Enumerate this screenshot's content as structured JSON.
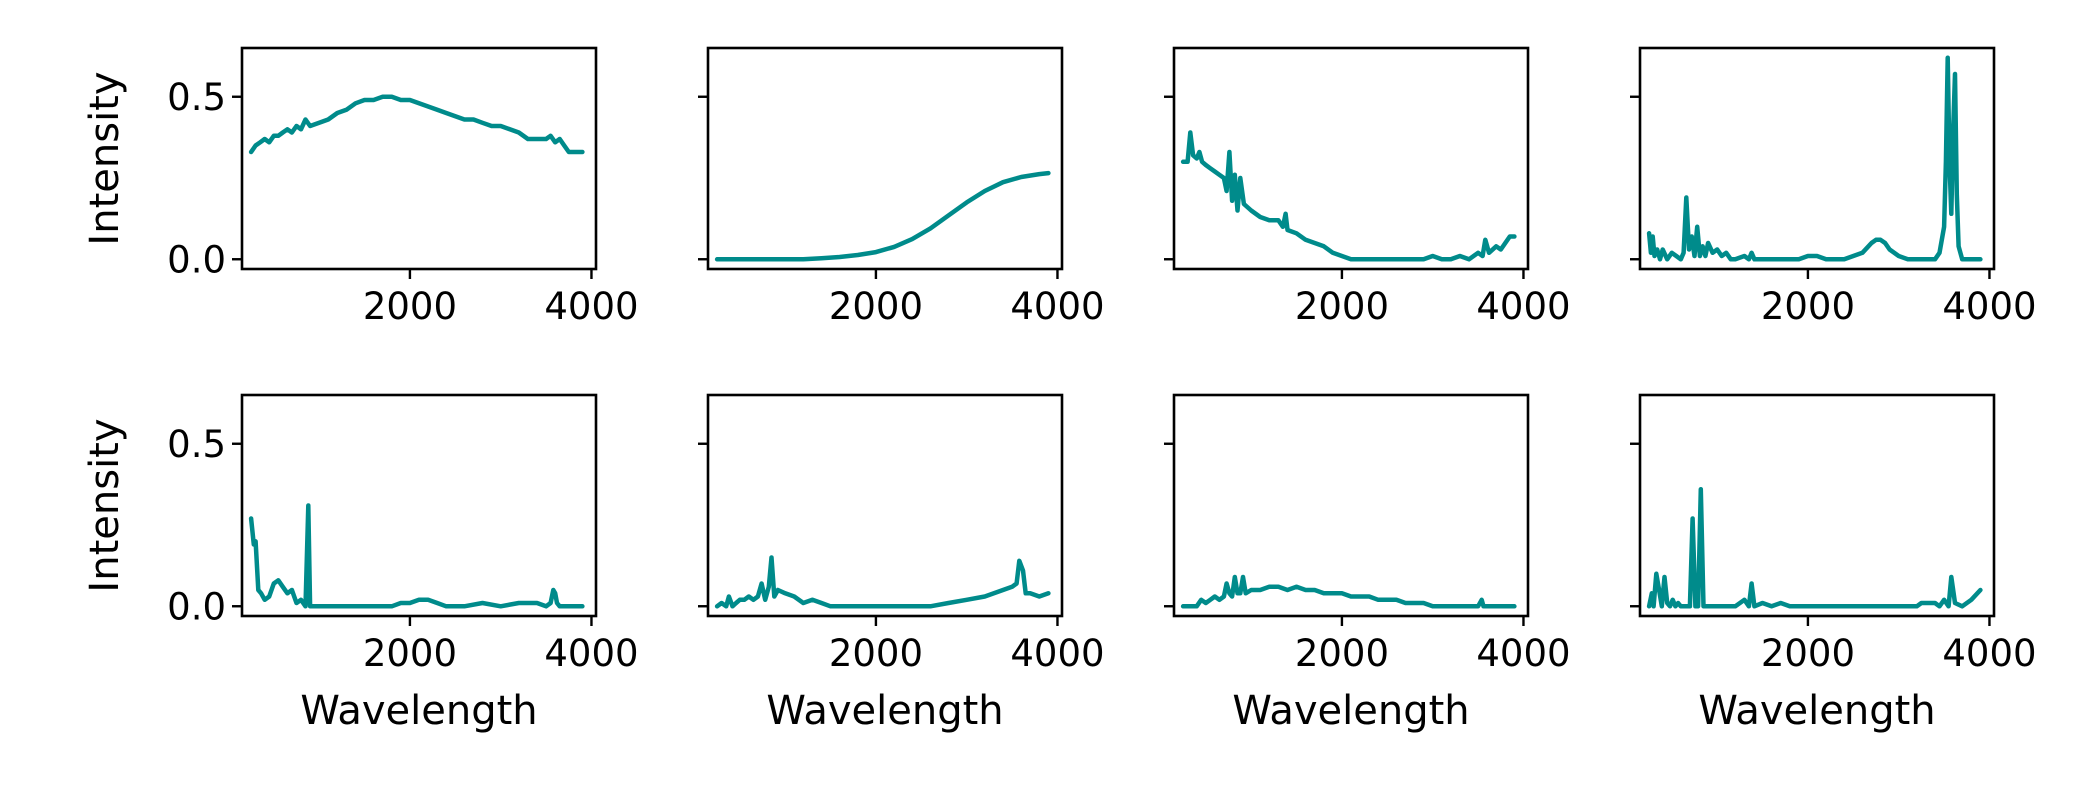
{
  "chart_data": [
    {
      "type": "line",
      "row": 0,
      "col": 0,
      "title": "",
      "xlabel": "",
      "ylabel": "Intensity",
      "xlim": [
        150,
        4050
      ],
      "ylim": [
        -0.03,
        0.65
      ],
      "xticks": [
        2000,
        4000
      ],
      "yticks": [
        0.0,
        0.5
      ],
      "xtick_labels": [
        "2000",
        "4000"
      ],
      "ytick_labels": [
        "0.0",
        "0.5"
      ],
      "series": [
        {
          "color": "#008b8b",
          "x": [
            250,
            300,
            350,
            400,
            450,
            500,
            550,
            600,
            650,
            700,
            750,
            800,
            850,
            900,
            1000,
            1100,
            1200,
            1300,
            1400,
            1500,
            1600,
            1700,
            1800,
            1900,
            2000,
            2100,
            2200,
            2300,
            2400,
            2500,
            2600,
            2700,
            2800,
            2900,
            3000,
            3100,
            3200,
            3300,
            3400,
            3500,
            3550,
            3600,
            3650,
            3700,
            3750,
            3800,
            3850,
            3900
          ],
          "y": [
            0.33,
            0.35,
            0.36,
            0.37,
            0.36,
            0.38,
            0.38,
            0.39,
            0.4,
            0.39,
            0.41,
            0.4,
            0.43,
            0.41,
            0.42,
            0.43,
            0.45,
            0.46,
            0.48,
            0.49,
            0.49,
            0.5,
            0.5,
            0.49,
            0.49,
            0.48,
            0.47,
            0.46,
            0.45,
            0.44,
            0.43,
            0.43,
            0.42,
            0.41,
            0.41,
            0.4,
            0.39,
            0.37,
            0.37,
            0.37,
            0.38,
            0.36,
            0.37,
            0.35,
            0.33,
            0.33,
            0.33,
            0.33
          ]
        }
      ]
    },
    {
      "type": "line",
      "row": 0,
      "col": 1,
      "title": "",
      "xlabel": "",
      "ylabel": "",
      "xlim": [
        150,
        4050
      ],
      "ylim": [
        -0.03,
        0.65
      ],
      "xticks": [
        2000,
        4000
      ],
      "yticks": [
        0.0,
        0.5
      ],
      "xtick_labels": [
        "2000",
        "4000"
      ],
      "ytick_labels": [],
      "series": [
        {
          "color": "#008b8b",
          "x": [
            250,
            400,
            600,
            800,
            1000,
            1200,
            1400,
            1600,
            1800,
            2000,
            2200,
            2400,
            2600,
            2800,
            3000,
            3200,
            3400,
            3600,
            3800,
            3900
          ],
          "y": [
            0.0,
            0.0,
            0.0,
            0.0,
            0.0,
            0.0,
            0.003,
            0.007,
            0.013,
            0.022,
            0.038,
            0.062,
            0.095,
            0.135,
            0.175,
            0.21,
            0.237,
            0.253,
            0.262,
            0.265
          ]
        }
      ]
    },
    {
      "type": "line",
      "row": 0,
      "col": 2,
      "title": "",
      "xlabel": "",
      "ylabel": "",
      "xlim": [
        150,
        4050
      ],
      "ylim": [
        -0.03,
        0.65
      ],
      "xticks": [
        2000,
        4000
      ],
      "yticks": [
        0.0,
        0.5
      ],
      "xtick_labels": [
        "2000",
        "4000"
      ],
      "ytick_labels": [],
      "series": [
        {
          "color": "#008b8b",
          "x": [
            250,
            300,
            330,
            360,
            400,
            430,
            460,
            500,
            550,
            600,
            650,
            700,
            730,
            760,
            790,
            820,
            850,
            880,
            920,
            1000,
            1100,
            1200,
            1300,
            1350,
            1380,
            1400,
            1500,
            1600,
            1700,
            1800,
            1900,
            2000,
            2100,
            2200,
            2300,
            2400,
            2600,
            2800,
            2900,
            3000,
            3100,
            3200,
            3300,
            3400,
            3500,
            3550,
            3580,
            3620,
            3700,
            3750,
            3800,
            3850,
            3900
          ],
          "y": [
            0.3,
            0.3,
            0.39,
            0.32,
            0.31,
            0.33,
            0.3,
            0.29,
            0.28,
            0.27,
            0.26,
            0.25,
            0.21,
            0.33,
            0.18,
            0.26,
            0.15,
            0.25,
            0.17,
            0.15,
            0.13,
            0.12,
            0.12,
            0.1,
            0.14,
            0.09,
            0.08,
            0.06,
            0.05,
            0.04,
            0.02,
            0.01,
            0.0,
            0.0,
            0.0,
            0.0,
            0.0,
            0.0,
            0.0,
            0.01,
            0.0,
            0.0,
            0.01,
            0.0,
            0.02,
            0.01,
            0.06,
            0.02,
            0.04,
            0.03,
            0.05,
            0.07,
            0.07
          ]
        }
      ]
    },
    {
      "type": "line",
      "row": 0,
      "col": 3,
      "title": "",
      "xlabel": "",
      "ylabel": "",
      "xlim": [
        150,
        4050
      ],
      "ylim": [
        -0.03,
        0.65
      ],
      "xticks": [
        2000,
        4000
      ],
      "yticks": [
        0.0,
        0.5
      ],
      "xtick_labels": [
        "2000",
        "4000"
      ],
      "ytick_labels": [],
      "series": [
        {
          "color": "#008b8b",
          "x": [
            250,
            270,
            290,
            310,
            340,
            370,
            400,
            450,
            500,
            550,
            600,
            630,
            660,
            690,
            720,
            750,
            780,
            810,
            840,
            870,
            900,
            950,
            1000,
            1050,
            1100,
            1150,
            1200,
            1300,
            1350,
            1380,
            1410,
            1500,
            1600,
            1700,
            1800,
            1900,
            2000,
            2100,
            2200,
            2300,
            2400,
            2500,
            2600,
            2700,
            2750,
            2800,
            2850,
            2900,
            3000,
            3100,
            3200,
            3300,
            3400,
            3450,
            3500,
            3520,
            3540,
            3560,
            3580,
            3600,
            3620,
            3640,
            3660,
            3700,
            3750,
            3800,
            3850,
            3900
          ],
          "y": [
            0.08,
            0.02,
            0.07,
            0.01,
            0.03,
            0.0,
            0.03,
            0.0,
            0.02,
            0.01,
            0.0,
            0.02,
            0.19,
            0.03,
            0.07,
            0.01,
            0.1,
            0.01,
            0.04,
            0.01,
            0.05,
            0.02,
            0.03,
            0.01,
            0.02,
            0.0,
            0.0,
            0.01,
            0.0,
            0.02,
            0.0,
            0.0,
            0.0,
            0.0,
            0.0,
            0.0,
            0.01,
            0.01,
            0.0,
            0.0,
            0.0,
            0.01,
            0.02,
            0.05,
            0.06,
            0.06,
            0.05,
            0.03,
            0.01,
            0.0,
            0.0,
            0.0,
            0.0,
            0.02,
            0.1,
            0.3,
            0.62,
            0.3,
            0.14,
            0.4,
            0.57,
            0.2,
            0.04,
            0.0,
            0.0,
            0.0,
            0.0,
            0.0
          ]
        }
      ]
    },
    {
      "type": "line",
      "row": 1,
      "col": 0,
      "title": "",
      "xlabel": "Wavelength",
      "ylabel": "Intensity",
      "xlim": [
        150,
        4050
      ],
      "ylim": [
        -0.03,
        0.65
      ],
      "xticks": [
        2000,
        4000
      ],
      "yticks": [
        0.0,
        0.5
      ],
      "xtick_labels": [
        "2000",
        "4000"
      ],
      "ytick_labels": [
        "0.0",
        "0.5"
      ],
      "series": [
        {
          "color": "#008b8b",
          "x": [
            250,
            280,
            300,
            330,
            360,
            400,
            450,
            500,
            550,
            600,
            650,
            700,
            750,
            800,
            850,
            880,
            900,
            920,
            950,
            1000,
            1100,
            1200,
            1400,
            1600,
            1800,
            1900,
            2000,
            2100,
            2200,
            2300,
            2400,
            2600,
            2800,
            3000,
            3200,
            3300,
            3400,
            3500,
            3550,
            3580,
            3600,
            3620,
            3650,
            3700,
            3800,
            3900
          ],
          "y": [
            0.27,
            0.19,
            0.2,
            0.05,
            0.04,
            0.02,
            0.03,
            0.07,
            0.08,
            0.06,
            0.04,
            0.05,
            0.01,
            0.02,
            0.0,
            0.31,
            0.0,
            0.0,
            0.0,
            0.0,
            0.0,
            0.0,
            0.0,
            0.0,
            0.0,
            0.01,
            0.01,
            0.02,
            0.02,
            0.01,
            0.0,
            0.0,
            0.01,
            0.0,
            0.01,
            0.01,
            0.01,
            0.0,
            0.01,
            0.05,
            0.04,
            0.01,
            0.0,
            0.0,
            0.0,
            0.0
          ]
        }
      ]
    },
    {
      "type": "line",
      "row": 1,
      "col": 1,
      "title": "",
      "xlabel": "Wavelength",
      "ylabel": "",
      "xlim": [
        150,
        4050
      ],
      "ylim": [
        -0.03,
        0.65
      ],
      "xticks": [
        2000,
        4000
      ],
      "yticks": [
        0.0,
        0.5
      ],
      "xtick_labels": [
        "2000",
        "4000"
      ],
      "ytick_labels": [],
      "series": [
        {
          "color": "#008b8b",
          "x": [
            250,
            300,
            350,
            380,
            420,
            460,
            500,
            550,
            600,
            650,
            700,
            740,
            780,
            820,
            850,
            880,
            920,
            1000,
            1100,
            1200,
            1300,
            1400,
            1500,
            1600,
            1800,
            2000,
            2200,
            2400,
            2600,
            2800,
            3000,
            3200,
            3400,
            3500,
            3550,
            3580,
            3620,
            3650,
            3700,
            3800,
            3900
          ],
          "y": [
            0.0,
            0.01,
            0.0,
            0.03,
            0.0,
            0.01,
            0.02,
            0.02,
            0.03,
            0.02,
            0.03,
            0.07,
            0.02,
            0.06,
            0.15,
            0.03,
            0.05,
            0.04,
            0.03,
            0.01,
            0.02,
            0.01,
            0.0,
            0.0,
            0.0,
            0.0,
            0.0,
            0.0,
            0.0,
            0.01,
            0.02,
            0.03,
            0.05,
            0.06,
            0.07,
            0.14,
            0.11,
            0.04,
            0.04,
            0.03,
            0.04
          ]
        }
      ]
    },
    {
      "type": "line",
      "row": 1,
      "col": 2,
      "title": "",
      "xlabel": "Wavelength",
      "ylabel": "",
      "xlim": [
        150,
        4050
      ],
      "ylim": [
        -0.03,
        0.65
      ],
      "xticks": [
        2000,
        4000
      ],
      "yticks": [
        0.0,
        0.5
      ],
      "xtick_labels": [
        "2000",
        "4000"
      ],
      "ytick_labels": [],
      "series": [
        {
          "color": "#008b8b",
          "x": [
            250,
            300,
            350,
            400,
            450,
            500,
            550,
            600,
            650,
            700,
            730,
            760,
            790,
            820,
            850,
            880,
            910,
            940,
            1000,
            1100,
            1200,
            1300,
            1400,
            1500,
            1600,
            1700,
            1800,
            1900,
            2000,
            2100,
            2200,
            2300,
            2400,
            2500,
            2600,
            2700,
            2800,
            2900,
            3000,
            3100,
            3200,
            3300,
            3400,
            3500,
            3540,
            3560,
            3600,
            3700,
            3800,
            3900
          ],
          "y": [
            0.0,
            0.0,
            0.0,
            0.0,
            0.02,
            0.01,
            0.02,
            0.03,
            0.02,
            0.03,
            0.07,
            0.04,
            0.03,
            0.09,
            0.04,
            0.04,
            0.09,
            0.04,
            0.05,
            0.05,
            0.06,
            0.06,
            0.05,
            0.06,
            0.05,
            0.05,
            0.04,
            0.04,
            0.04,
            0.03,
            0.03,
            0.03,
            0.02,
            0.02,
            0.02,
            0.01,
            0.01,
            0.01,
            0.0,
            0.0,
            0.0,
            0.0,
            0.0,
            0.0,
            0.02,
            0.0,
            0.0,
            0.0,
            0.0,
            0.0
          ]
        }
      ]
    },
    {
      "type": "line",
      "row": 1,
      "col": 3,
      "title": "",
      "xlabel": "Wavelength",
      "ylabel": "",
      "xlim": [
        150,
        4050
      ],
      "ylim": [
        -0.03,
        0.65
      ],
      "xticks": [
        2000,
        4000
      ],
      "yticks": [
        0.0,
        0.5
      ],
      "xtick_labels": [
        "2000",
        "4000"
      ],
      "ytick_labels": [],
      "series": [
        {
          "color": "#008b8b",
          "x": [
            250,
            280,
            300,
            330,
            360,
            390,
            420,
            450,
            480,
            510,
            540,
            570,
            600,
            650,
            700,
            730,
            760,
            790,
            820,
            850,
            880,
            910,
            1000,
            1100,
            1200,
            1300,
            1350,
            1380,
            1410,
            1500,
            1600,
            1700,
            1800,
            2000,
            2200,
            2400,
            2600,
            2800,
            3000,
            3200,
            3250,
            3300,
            3400,
            3450,
            3500,
            3550,
            3580,
            3620,
            3700,
            3800,
            3900
          ],
          "y": [
            0.0,
            0.04,
            0.0,
            0.1,
            0.05,
            0.0,
            0.09,
            0.01,
            0.0,
            0.02,
            0.0,
            0.01,
            0.0,
            0.0,
            0.0,
            0.27,
            0.0,
            0.0,
            0.36,
            0.0,
            0.0,
            0.0,
            0.0,
            0.0,
            0.0,
            0.02,
            0.0,
            0.07,
            0.0,
            0.01,
            0.0,
            0.01,
            0.0,
            0.0,
            0.0,
            0.0,
            0.0,
            0.0,
            0.0,
            0.0,
            0.01,
            0.01,
            0.01,
            0.0,
            0.02,
            0.0,
            0.09,
            0.01,
            0.0,
            0.02,
            0.05
          ]
        }
      ]
    }
  ]
}
